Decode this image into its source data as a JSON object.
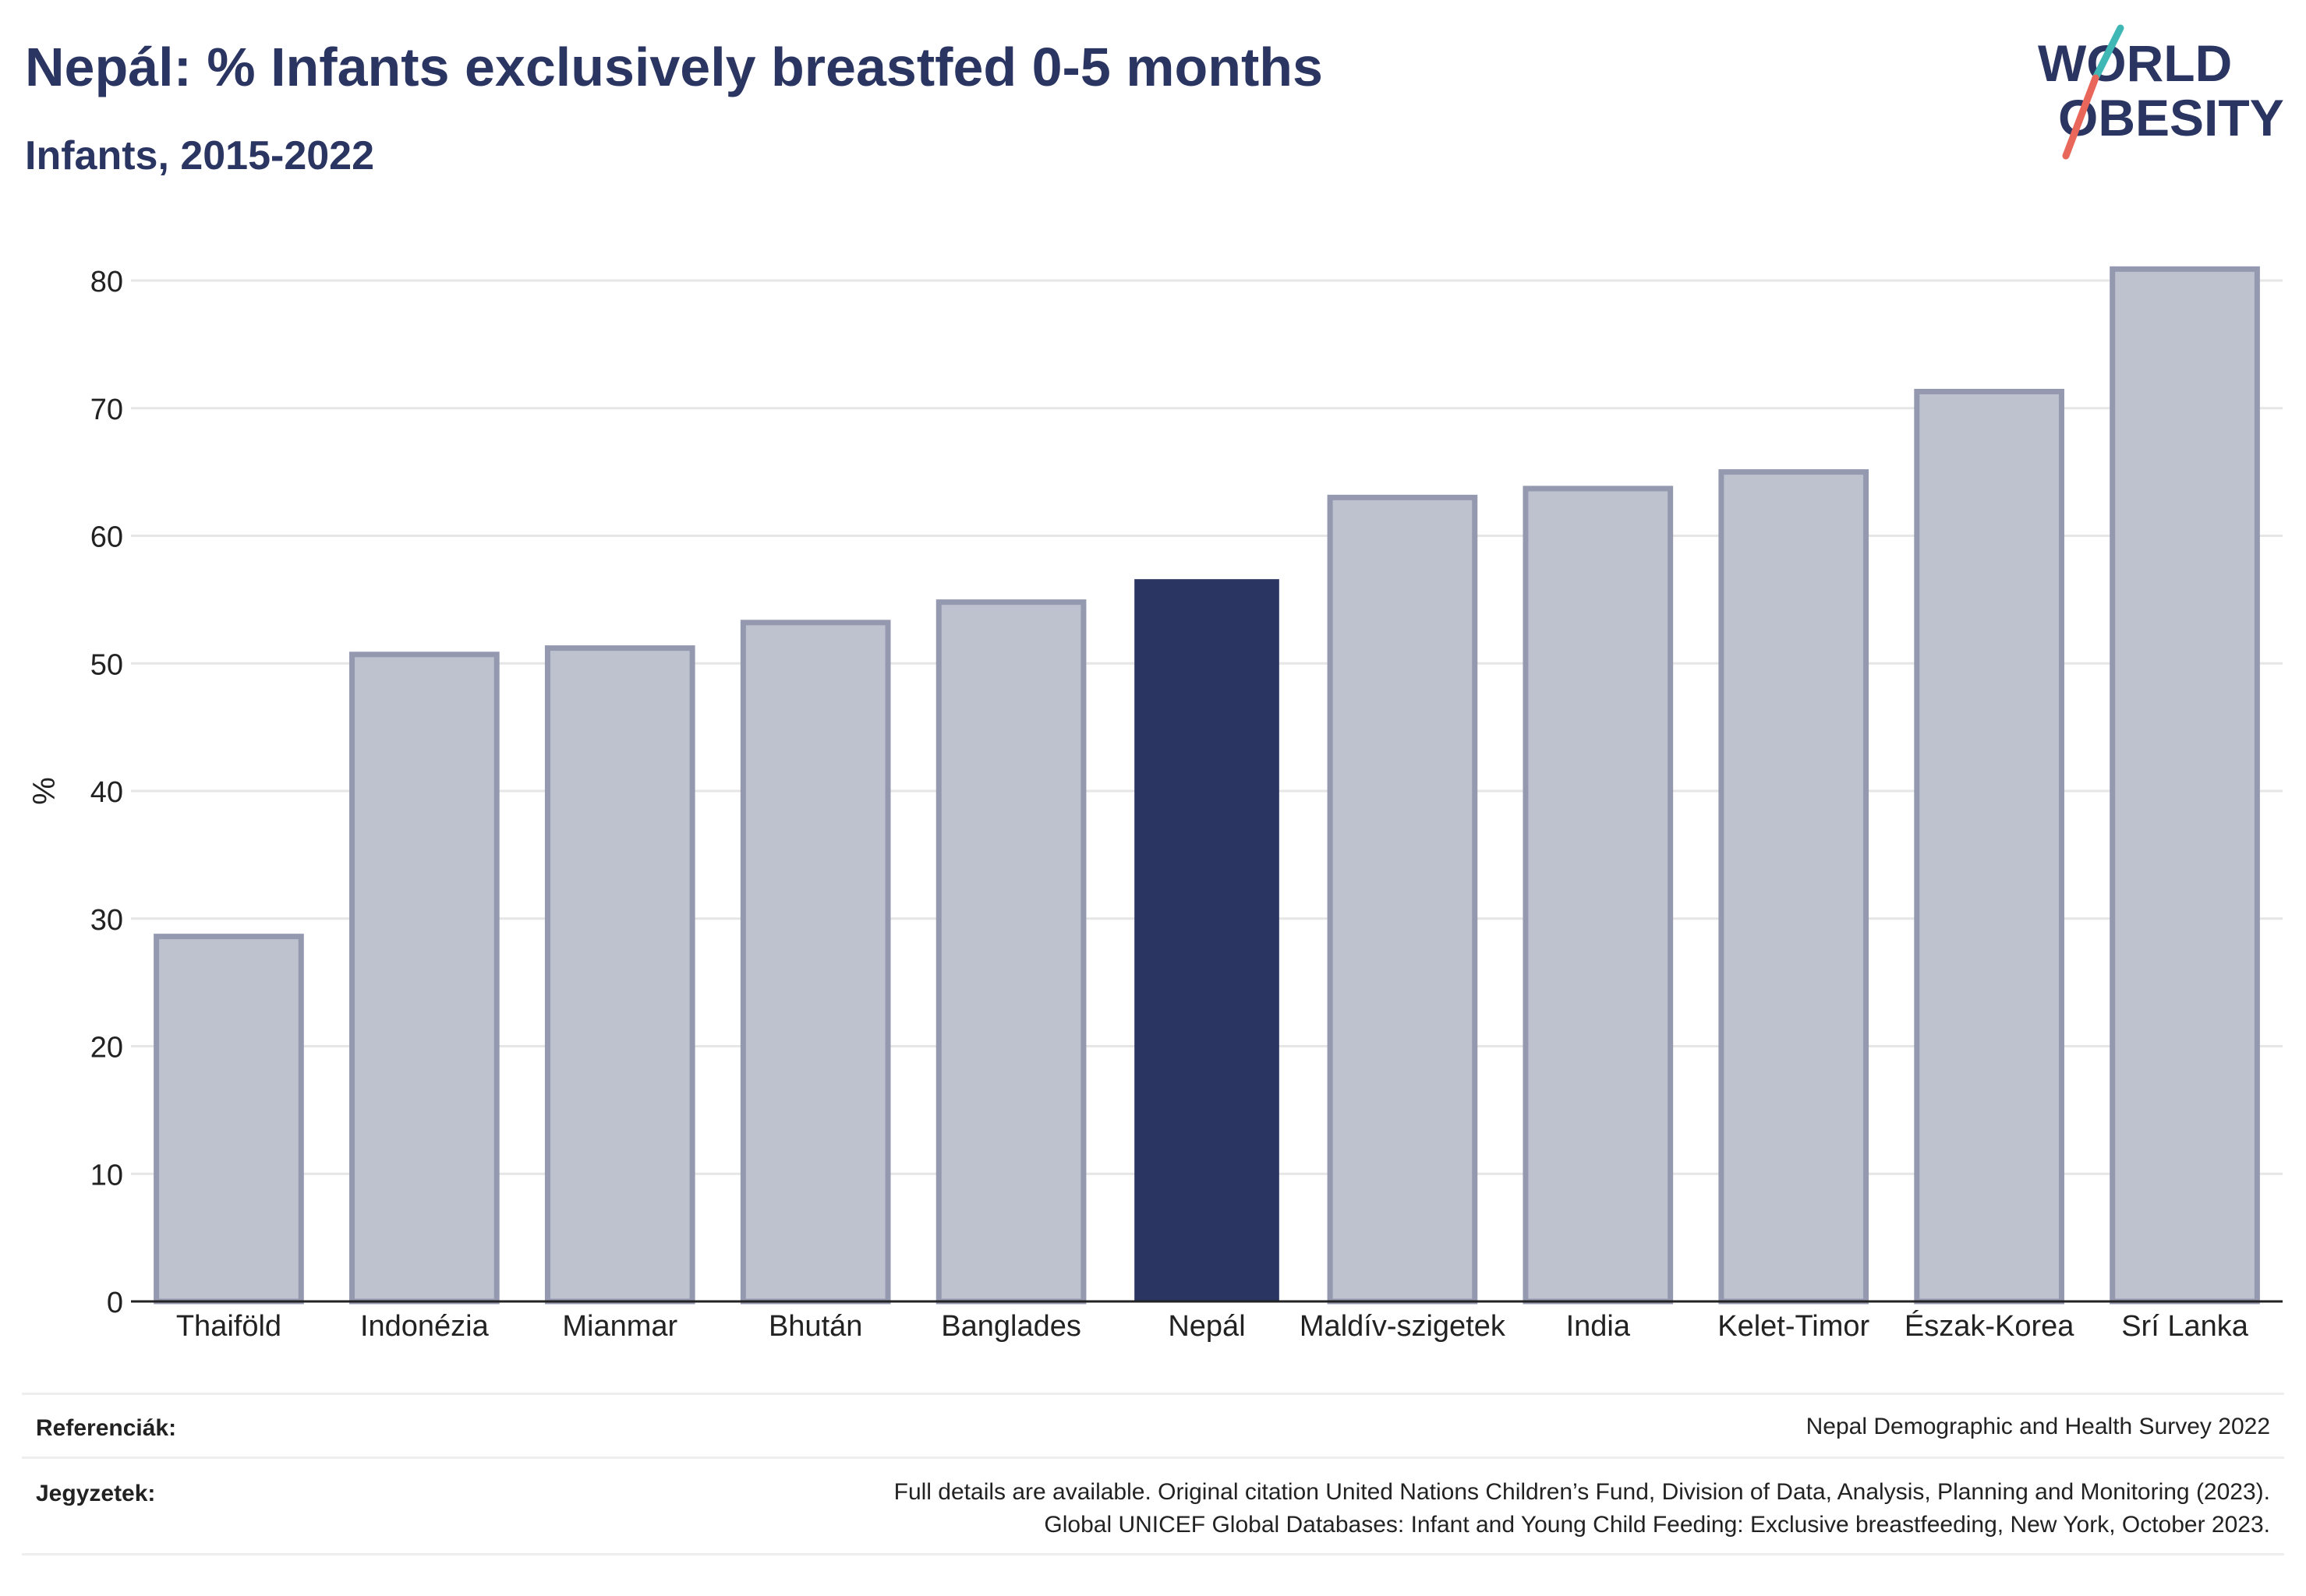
{
  "header": {
    "title": "Nepál: % Infants exclusively breastfed 0-5 months",
    "subtitle": "Infants, 2015-2022"
  },
  "logo": {
    "line1": "WORLD",
    "line2": "OBESITY"
  },
  "chart_data": {
    "type": "bar",
    "title": "Nepál: % Infants exclusively breastfed 0-5 months",
    "subtitle": "Infants, 2015-2022",
    "xlabel": "",
    "ylabel": "%",
    "ylim": [
      0,
      80
    ],
    "yticks": [
      0,
      10,
      20,
      30,
      40,
      50,
      60,
      70,
      80
    ],
    "grid": true,
    "legend": "none",
    "categories": [
      "Thaiföld",
      "Indonézia",
      "Mianmar",
      "Bhután",
      "Banglades",
      "Nepál",
      "Maldív-szigetek",
      "India",
      "Kelet-Timor",
      "Észak-Korea",
      "Srí Lanka"
    ],
    "values": [
      28.6,
      50.7,
      51.2,
      53.2,
      54.8,
      56.6,
      63.0,
      63.7,
      65.0,
      71.3,
      80.9
    ],
    "highlight": "Nepál",
    "colors": {
      "highlight": "#2b3562",
      "other_fill": "#bec2cf",
      "other_stroke": "#9499b0"
    }
  },
  "footer": {
    "references_label": "Referenciák:",
    "references_text": "Nepal Demographic and Health Survey 2022",
    "notes_label": "Jegyzetek:",
    "notes_line1": "Full details are available. Original citation United Nations Children’s Fund, Division of Data, Analysis, Planning and Monitoring (2023).",
    "notes_line2": "Global UNICEF Global Databases: Infant and Young Child Feeding: Exclusive breastfeeding, New York, October 2023."
  }
}
